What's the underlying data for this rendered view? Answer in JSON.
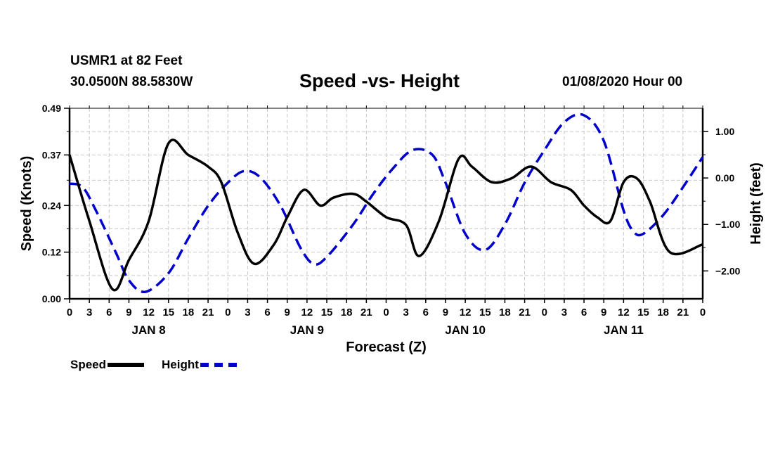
{
  "header": {
    "station": "USMR1 at 82 Feet",
    "coordinates": "30.0500N 88.5830W",
    "title": "Speed -vs- Height",
    "run_time": "01/08/2020 Hour 00"
  },
  "legend": {
    "speed_label": "Speed",
    "height_label": "Height"
  },
  "colors": {
    "speed": "#000000",
    "height": "#0000cc",
    "grid": "#c8c8c8"
  },
  "chart_data": {
    "type": "line",
    "xlabel": "Forecast (Z)",
    "ylabel_left": "Speed (Knots)",
    "ylabel_right": "Height (feet)",
    "x_range_hours": [
      0,
      96
    ],
    "x_tick_labels": [
      "0",
      "3",
      "6",
      "9",
      "12",
      "15",
      "18",
      "21",
      "0",
      "3",
      "6",
      "9",
      "12",
      "15",
      "18",
      "21",
      "0",
      "3",
      "6",
      "9",
      "12",
      "15",
      "18",
      "21",
      "0",
      "3",
      "6",
      "9",
      "12",
      "15",
      "18",
      "21",
      "0"
    ],
    "date_labels": [
      {
        "label": "JAN 8",
        "hour": 12
      },
      {
        "label": "JAN 9",
        "hour": 36
      },
      {
        "label": "JAN 10",
        "hour": 60
      },
      {
        "label": "JAN 11",
        "hour": 84
      }
    ],
    "y_left": {
      "min": 0,
      "max": 0.49,
      "ticks": [
        0.0,
        0.12,
        0.24,
        0.37,
        0.49
      ],
      "tick_labels": [
        "0.00",
        "0.12",
        "0.24",
        "0.37",
        "0.49"
      ]
    },
    "y_right": {
      "min": -2.6,
      "max": 1.5,
      "ticks": [
        1.0,
        0.0,
        -1.0,
        -2.0
      ],
      "tick_labels": [
        "1.00",
        "0.00",
        "−1.00",
        "−2.00"
      ]
    },
    "series": [
      {
        "name": "Speed",
        "axis": "left",
        "style": "solid",
        "x": [
          0,
          3,
          6.5,
          9,
          12,
          15,
          18,
          21,
          23,
          25.5,
          28,
          31,
          33,
          35.5,
          38,
          40,
          43,
          45,
          48,
          51,
          53,
          56,
          59,
          61,
          64,
          67,
          70,
          73,
          76,
          78,
          80,
          82,
          84,
          86,
          88,
          91,
          96
        ],
        "values": [
          0.37,
          0.2,
          0.025,
          0.1,
          0.2,
          0.4,
          0.37,
          0.34,
          0.3,
          0.17,
          0.09,
          0.14,
          0.21,
          0.28,
          0.24,
          0.26,
          0.27,
          0.25,
          0.21,
          0.19,
          0.11,
          0.2,
          0.36,
          0.34,
          0.3,
          0.31,
          0.34,
          0.3,
          0.28,
          0.24,
          0.21,
          0.2,
          0.3,
          0.31,
          0.25,
          0.12,
          0.14
        ]
      },
      {
        "name": "Height",
        "axis": "right",
        "style": "dashed",
        "x": [
          0,
          2,
          4,
          7,
          9,
          11.5,
          15,
          18,
          21,
          24,
          26.5,
          29,
          32,
          35,
          37,
          39,
          43,
          46,
          49,
          52,
          55,
          57,
          60,
          63,
          66,
          69,
          72,
          75,
          78,
          81,
          84,
          85.5,
          87,
          90,
          93,
          96
        ],
        "values": [
          -0.12,
          -0.2,
          -0.7,
          -1.6,
          -2.2,
          -2.45,
          -2.05,
          -1.3,
          -0.6,
          -0.1,
          0.15,
          0.0,
          -0.6,
          -1.5,
          -1.85,
          -1.7,
          -1.0,
          -0.35,
          0.2,
          0.6,
          0.5,
          -0.1,
          -1.2,
          -1.55,
          -1.0,
          -0.1,
          0.6,
          1.2,
          1.35,
          0.8,
          -0.7,
          -1.15,
          -1.2,
          -0.8,
          -0.2,
          0.45
        ]
      }
    ]
  }
}
